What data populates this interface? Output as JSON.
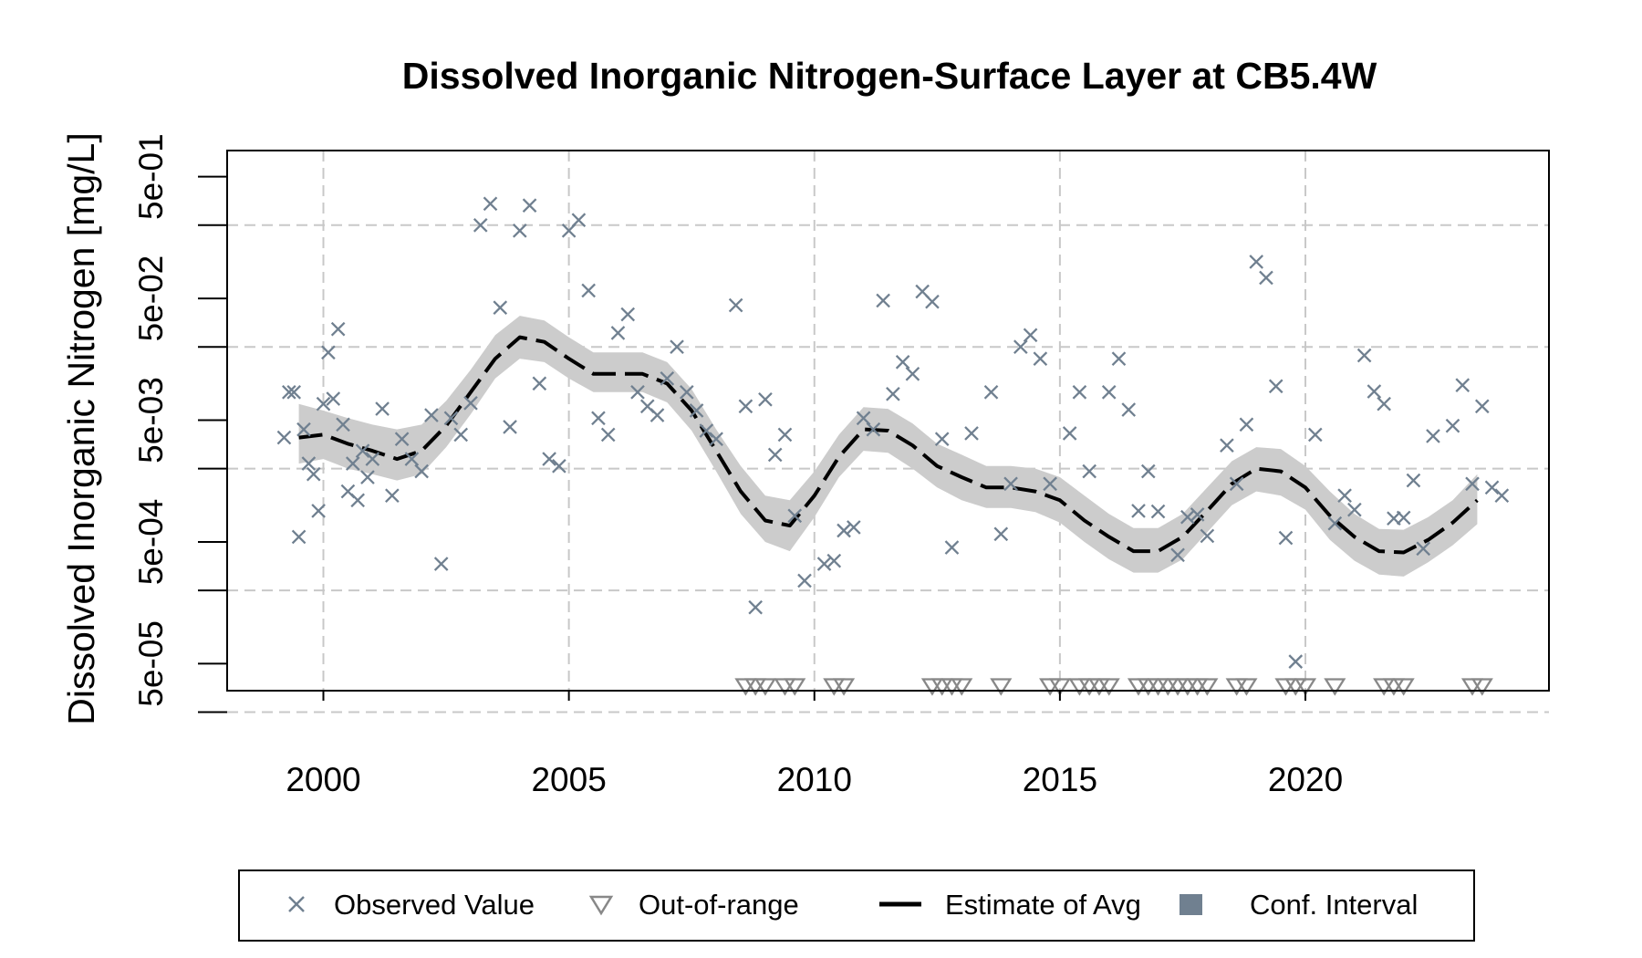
{
  "chart_data": {
    "type": "scatter",
    "title": "Dissolved Inorganic Nitrogen-Surface Layer at CB5.4W",
    "xlabel": "",
    "ylabel": "Dissolved Inorganic Nitrogen [mg/L]",
    "x_ticks": [
      "2000",
      "2005",
      "2010",
      "2015",
      "2020"
    ],
    "y_scale": "log",
    "y_ticks": [
      "5e-05",
      "5e-04",
      "5e-03",
      "5e-02",
      "5e-01"
    ],
    "xlim": [
      1998.04,
      2024.96
    ],
    "ylim": [
      3e-05,
      0.82
    ],
    "grid": true,
    "legend_position": "bottom",
    "colors": {
      "observed": "#708090",
      "out_of_range": "#888888",
      "estimate": "#000000",
      "ci_band": "#cccccc",
      "ci_legend": "#708090",
      "grid": "#c8c8c8"
    },
    "legend": [
      {
        "label": "Observed Value",
        "symbol": "x"
      },
      {
        "label": "Out-of-range",
        "symbol": "triangle-down"
      },
      {
        "label": "Estimate of Avg",
        "symbol": "dashed-line"
      },
      {
        "label": "Conf. Interval",
        "symbol": "square"
      }
    ],
    "series": [
      {
        "name": "Estimate of Avg",
        "kind": "line",
        "x": [
          1999.5,
          2000.0,
          2000.5,
          2001.0,
          2001.5,
          2002.0,
          2002.5,
          2003.0,
          2003.5,
          2004.0,
          2004.5,
          2005.0,
          2005.5,
          2006.0,
          2006.5,
          2007.0,
          2007.5,
          2008.0,
          2008.5,
          2009.0,
          2009.5,
          2010.0,
          2010.5,
          2011.0,
          2011.5,
          2012.0,
          2012.5,
          2013.0,
          2013.5,
          2014.0,
          2014.5,
          2015.0,
          2015.5,
          2016.0,
          2016.5,
          2017.0,
          2017.5,
          2018.0,
          2018.5,
          2019.0,
          2019.5,
          2020.0,
          2020.5,
          2021.0,
          2021.5,
          2022.0,
          2022.5,
          2023.0,
          2023.5
        ],
        "y": [
          0.0036,
          0.0038,
          0.0032,
          0.0028,
          0.0024,
          0.0028,
          0.0045,
          0.0085,
          0.016,
          0.024,
          0.022,
          0.016,
          0.012,
          0.012,
          0.012,
          0.01,
          0.006,
          0.0028,
          0.0013,
          0.00075,
          0.00068,
          0.0012,
          0.0025,
          0.0042,
          0.0041,
          0.0031,
          0.0021,
          0.0017,
          0.0014,
          0.0014,
          0.0013,
          0.0011,
          0.00075,
          0.00055,
          0.00042,
          0.00042,
          0.00055,
          0.0009,
          0.0015,
          0.002,
          0.0019,
          0.0014,
          0.00082,
          0.00055,
          0.00042,
          0.00041,
          0.00052,
          0.00072,
          0.0011
        ]
      },
      {
        "name": "Conf. Interval",
        "kind": "band",
        "x": [
          1999.5,
          2000.0,
          2000.5,
          2001.0,
          2001.5,
          2002.0,
          2002.5,
          2003.0,
          2003.5,
          2004.0,
          2004.5,
          2005.0,
          2005.5,
          2006.0,
          2006.5,
          2007.0,
          2007.5,
          2008.0,
          2008.5,
          2009.0,
          2009.5,
          2010.0,
          2010.5,
          2011.0,
          2011.5,
          2012.0,
          2012.5,
          2013.0,
          2013.5,
          2014.0,
          2014.5,
          2015.0,
          2015.5,
          2016.0,
          2016.5,
          2017.0,
          2017.5,
          2018.0,
          2018.5,
          2019.0,
          2019.5,
          2020.0,
          2020.5,
          2021.0,
          2021.5,
          2022.0,
          2022.5,
          2023.0,
          2023.5
        ],
        "lower": [
          0.0022,
          0.0024,
          0.002,
          0.0018,
          0.0016,
          0.0018,
          0.003,
          0.0056,
          0.011,
          0.016,
          0.015,
          0.011,
          0.0085,
          0.0085,
          0.0085,
          0.007,
          0.0041,
          0.0019,
          0.00085,
          0.0005,
          0.00042,
          0.0008,
          0.0017,
          0.0028,
          0.0027,
          0.002,
          0.0014,
          0.0011,
          0.00095,
          0.00095,
          0.00088,
          0.00072,
          0.0005,
          0.00036,
          0.00028,
          0.00028,
          0.00036,
          0.0006,
          0.001,
          0.0013,
          0.0012,
          0.00092,
          0.00052,
          0.00035,
          0.00027,
          0.00026,
          0.00034,
          0.00047,
          0.0007
        ],
        "upper": [
          0.0068,
          0.006,
          0.0052,
          0.0046,
          0.0042,
          0.0046,
          0.0072,
          0.013,
          0.025,
          0.036,
          0.033,
          0.024,
          0.018,
          0.018,
          0.018,
          0.015,
          0.009,
          0.0042,
          0.0021,
          0.0012,
          0.0011,
          0.0019,
          0.0038,
          0.0064,
          0.0062,
          0.0047,
          0.0032,
          0.0026,
          0.0021,
          0.0021,
          0.002,
          0.0017,
          0.0012,
          0.00085,
          0.00065,
          0.00065,
          0.00085,
          0.0014,
          0.0023,
          0.003,
          0.0029,
          0.0021,
          0.0013,
          0.00085,
          0.00064,
          0.00063,
          0.0008,
          0.0011,
          0.0018
        ]
      },
      {
        "name": "Observed Value",
        "kind": "points",
        "x": [
          1999.2,
          1999.3,
          1999.4,
          1999.5,
          1999.6,
          1999.7,
          1999.8,
          1999.9,
          2000.0,
          2000.1,
          2000.2,
          2000.3,
          2000.4,
          2000.5,
          2000.6,
          2000.7,
          2000.8,
          2000.9,
          2001.0,
          2001.2,
          2001.4,
          2001.6,
          2001.8,
          2002.0,
          2002.2,
          2002.4,
          2002.6,
          2002.8,
          2003.0,
          2003.2,
          2003.4,
          2003.6,
          2003.8,
          2004.0,
          2004.2,
          2004.4,
          2004.6,
          2004.8,
          2005.0,
          2005.2,
          2005.4,
          2005.6,
          2005.8,
          2006.0,
          2006.2,
          2006.4,
          2006.6,
          2006.8,
          2007.0,
          2007.2,
          2007.4,
          2007.6,
          2007.8,
          2008.0,
          2008.4,
          2008.6,
          2008.8,
          2009.0,
          2009.2,
          2009.4,
          2009.6,
          2009.8,
          2010.2,
          2010.4,
          2010.6,
          2010.8,
          2011.0,
          2011.2,
          2011.4,
          2011.6,
          2011.8,
          2012.0,
          2012.2,
          2012.4,
          2012.6,
          2012.8,
          2013.2,
          2013.6,
          2013.8,
          2014.0,
          2014.2,
          2014.4,
          2014.6,
          2014.8,
          2015.2,
          2015.4,
          2015.6,
          2016.0,
          2016.2,
          2016.4,
          2016.6,
          2016.8,
          2017.0,
          2017.4,
          2017.6,
          2017.8,
          2018.0,
          2018.4,
          2018.6,
          2018.8,
          2019.0,
          2019.2,
          2019.4,
          2019.6,
          2019.8,
          2020.2,
          2020.6,
          2020.8,
          2021.0,
          2021.2,
          2021.4,
          2021.6,
          2021.8,
          2022.0,
          2022.2,
          2022.4,
          2022.6,
          2023.0,
          2023.2,
          2023.4,
          2023.6,
          2023.8,
          2024.0
        ],
        "y": [
          0.0036,
          0.0085,
          0.0085,
          0.00055,
          0.0042,
          0.0022,
          0.0018,
          0.0009,
          0.0068,
          0.018,
          0.0075,
          0.028,
          0.0046,
          0.0013,
          0.0022,
          0.0011,
          0.0028,
          0.0017,
          0.0024,
          0.0062,
          0.0012,
          0.0035,
          0.0024,
          0.0019,
          0.0055,
          0.00033,
          0.0052,
          0.0038,
          0.0069,
          0.2,
          0.3,
          0.042,
          0.0044,
          0.18,
          0.29,
          0.01,
          0.0024,
          0.0021,
          0.18,
          0.22,
          0.058,
          0.0052,
          0.0038,
          0.026,
          0.037,
          0.0085,
          0.0065,
          0.0055,
          0.011,
          0.02,
          0.0085,
          0.006,
          0.0041,
          0.0035,
          0.044,
          0.0065,
          0.000145,
          0.0074,
          0.0026,
          0.0038,
          0.00082,
          0.00024,
          0.00033,
          0.00035,
          0.00062,
          0.00066,
          0.0052,
          0.0042,
          0.048,
          0.0082,
          0.015,
          0.012,
          0.057,
          0.047,
          0.0035,
          0.00045,
          0.0039,
          0.0085,
          0.00058,
          0.0015,
          0.02,
          0.025,
          0.016,
          0.0015,
          0.0039,
          0.0085,
          0.0019,
          0.0085,
          0.016,
          0.0061,
          0.0009,
          0.0019,
          0.00089,
          0.00039,
          0.0008,
          0.00084,
          0.00056,
          0.0031,
          0.0015,
          0.0046,
          0.1,
          0.074,
          0.0095,
          0.00054,
          5.2e-05,
          0.0038,
          0.00071,
          0.0012,
          0.00092,
          0.017,
          0.0086,
          0.0068,
          0.00078,
          0.00079,
          0.0016,
          0.00044,
          0.0037,
          0.0045,
          0.0097,
          0.0015,
          0.0065,
          0.0014,
          0.0012
        ]
      },
      {
        "name": "Out-of-range",
        "kind": "points",
        "x": [
          2008.6,
          2008.8,
          2009.0,
          2009.4,
          2009.6,
          2010.4,
          2010.6,
          2012.4,
          2012.6,
          2012.8,
          2013.0,
          2013.8,
          2014.8,
          2015.0,
          2015.4,
          2015.6,
          2015.8,
          2016.0,
          2016.6,
          2016.8,
          2017.0,
          2017.2,
          2017.4,
          2017.6,
          2017.8,
          2018.0,
          2018.6,
          2018.8,
          2019.6,
          2019.8,
          2020.0,
          2020.6,
          2021.6,
          2021.8,
          2022.0,
          2023.4,
          2023.6
        ],
        "y": [
          3.3e-05,
          3.3e-05,
          3.3e-05,
          3.3e-05,
          3.3e-05,
          3.3e-05,
          3.3e-05,
          3.3e-05,
          3.3e-05,
          3.3e-05,
          3.3e-05,
          3.3e-05,
          3.3e-05,
          3.3e-05,
          3.3e-05,
          3.3e-05,
          3.3e-05,
          3.3e-05,
          3.3e-05,
          3.3e-05,
          3.3e-05,
          3.3e-05,
          3.3e-05,
          3.3e-05,
          3.3e-05,
          3.3e-05,
          3.3e-05,
          3.3e-05,
          3.3e-05,
          3.3e-05,
          3.3e-05,
          3.3e-05,
          3.3e-05,
          3.3e-05,
          3.3e-05,
          3.3e-05,
          3.3e-05
        ]
      }
    ]
  }
}
